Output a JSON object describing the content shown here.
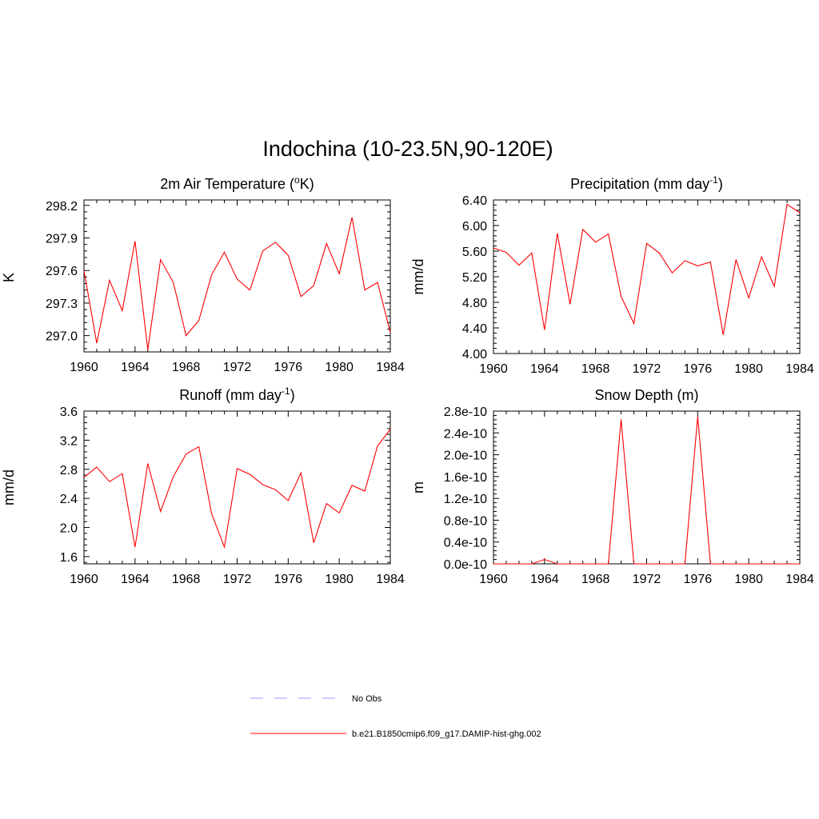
{
  "figure": {
    "title": "Indochina (10-23.5N,90-120E)"
  },
  "legend": {
    "items": [
      {
        "label": "No Obs",
        "color": "#9999ff",
        "style": "dashed"
      },
      {
        "label": "b.e21.B1850cmip6.f09_g17.DAMIP-hist-ghg.002",
        "color": "#ff0000",
        "style": "solid"
      }
    ]
  },
  "chart_data": [
    {
      "type": "line",
      "title": "2m Air Temperature (",
      "title_sup": "o",
      "title_tail": "K)",
      "ylabel": "K",
      "xlim": [
        1960,
        1984
      ],
      "ylim": [
        296.85,
        298.25
      ],
      "xticks": [
        1960,
        1964,
        1968,
        1972,
        1976,
        1980,
        1984
      ],
      "xtick_labels": [
        "1960",
        "1964",
        "1968",
        "1972",
        "1976",
        "1980",
        "1984"
      ],
      "yticks": [
        297.0,
        297.3,
        297.6,
        297.9,
        298.2
      ],
      "ytick_labels": [
        "297.0",
        "297.3",
        "297.6",
        "297.9",
        "298.2"
      ],
      "series": [
        {
          "color": "#ff0000",
          "x": [
            1960,
            1961,
            1962,
            1963,
            1964,
            1965,
            1966,
            1967,
            1968,
            1969,
            1970,
            1971,
            1972,
            1973,
            1974,
            1975,
            1976,
            1977,
            1978,
            1979,
            1980,
            1981,
            1982,
            1983,
            1984
          ],
          "y": [
            297.6,
            296.93,
            297.51,
            297.23,
            297.87,
            296.87,
            297.7,
            297.49,
            297.0,
            297.14,
            297.56,
            297.77,
            297.52,
            297.42,
            297.78,
            297.86,
            297.74,
            297.36,
            297.46,
            297.85,
            297.57,
            298.09,
            297.42,
            297.49,
            297.03
          ]
        }
      ]
    },
    {
      "type": "line",
      "title": "Precipitation (mm day",
      "title_sup": "-1",
      "title_tail": ")",
      "ylabel": "mm/d",
      "xlim": [
        1960,
        1984
      ],
      "ylim": [
        4.0,
        6.4
      ],
      "xticks": [
        1960,
        1964,
        1968,
        1972,
        1976,
        1980,
        1984
      ],
      "xtick_labels": [
        "1960",
        "1964",
        "1968",
        "1972",
        "1976",
        "1980",
        "1984"
      ],
      "yticks": [
        4.0,
        4.4,
        4.8,
        5.2,
        5.6,
        6.0,
        6.4
      ],
      "ytick_labels": [
        "4.00",
        "4.40",
        "4.80",
        "5.20",
        "5.60",
        "6.00",
        "6.40"
      ],
      "series": [
        {
          "color": "#ff0000",
          "x": [
            1960,
            1961,
            1962,
            1963,
            1964,
            1965,
            1966,
            1967,
            1968,
            1969,
            1970,
            1971,
            1972,
            1973,
            1974,
            1975,
            1976,
            1977,
            1978,
            1979,
            1980,
            1981,
            1982,
            1983,
            1984
          ],
          "y": [
            5.65,
            5.58,
            5.38,
            5.57,
            4.37,
            5.88,
            4.77,
            5.94,
            5.74,
            5.87,
            4.89,
            4.47,
            5.72,
            5.57,
            5.26,
            5.45,
            5.37,
            5.43,
            4.29,
            5.47,
            4.87,
            5.51,
            5.05,
            6.33,
            6.2
          ]
        }
      ]
    },
    {
      "type": "line",
      "title": "Runoff (mm day",
      "title_sup": "-1",
      "title_tail": ")",
      "ylabel": "mm/d",
      "xlim": [
        1960,
        1984
      ],
      "ylim": [
        1.5,
        3.6
      ],
      "xticks": [
        1960,
        1964,
        1968,
        1972,
        1976,
        1980,
        1984
      ],
      "xtick_labels": [
        "1960",
        "1964",
        "1968",
        "1972",
        "1976",
        "1980",
        "1984"
      ],
      "yticks": [
        1.6,
        2.0,
        2.4,
        2.8,
        3.2,
        3.6
      ],
      "ytick_labels": [
        "1.6",
        "2.0",
        "2.4",
        "2.8",
        "3.2",
        "3.6"
      ],
      "series": [
        {
          "color": "#ff0000",
          "x": [
            1960,
            1961,
            1962,
            1963,
            1964,
            1965,
            1966,
            1967,
            1968,
            1969,
            1970,
            1971,
            1972,
            1973,
            1974,
            1975,
            1976,
            1977,
            1978,
            1979,
            1980,
            1981,
            1982,
            1983,
            1984
          ],
          "y": [
            2.69,
            2.83,
            2.63,
            2.74,
            1.73,
            2.88,
            2.22,
            2.7,
            3.01,
            3.11,
            2.19,
            1.73,
            2.81,
            2.73,
            2.59,
            2.52,
            2.37,
            2.75,
            1.79,
            2.33,
            2.2,
            2.58,
            2.5,
            3.12,
            3.35
          ]
        }
      ]
    },
    {
      "type": "line",
      "title": "Snow Depth (m)",
      "title_sup": "",
      "title_tail": "",
      "ylabel": "m",
      "xlim": [
        1960,
        1984
      ],
      "ylim": [
        0,
        2.8e-10
      ],
      "xticks": [
        1960,
        1964,
        1968,
        1972,
        1976,
        1980,
        1984
      ],
      "xtick_labels": [
        "1960",
        "1964",
        "1968",
        "1972",
        "1976",
        "1980",
        "1984"
      ],
      "yticks": [
        0,
        4e-11,
        8e-11,
        1.2e-10,
        1.6e-10,
        2e-10,
        2.4e-10,
        2.8e-10
      ],
      "ytick_labels": [
        "0.0e-10",
        "0.4e-10",
        "0.8e-10",
        "1.2e-10",
        "1.6e-10",
        "2.0e-10",
        "2.4e-10",
        "2.8e-10"
      ],
      "series": [
        {
          "color": "#ff0000",
          "x": [
            1960,
            1961,
            1962,
            1963,
            1964,
            1965,
            1966,
            1967,
            1968,
            1969,
            1970,
            1971,
            1972,
            1973,
            1974,
            1975,
            1976,
            1977,
            1978,
            1979,
            1980,
            1981,
            1982,
            1983,
            1984
          ],
          "y": [
            0,
            0,
            0,
            0,
            8e-12,
            0,
            0,
            0,
            0,
            0,
            2.65e-10,
            0,
            0,
            0,
            0,
            0,
            2.7e-10,
            0,
            0,
            0,
            0,
            0,
            0,
            0,
            0
          ]
        }
      ]
    }
  ]
}
